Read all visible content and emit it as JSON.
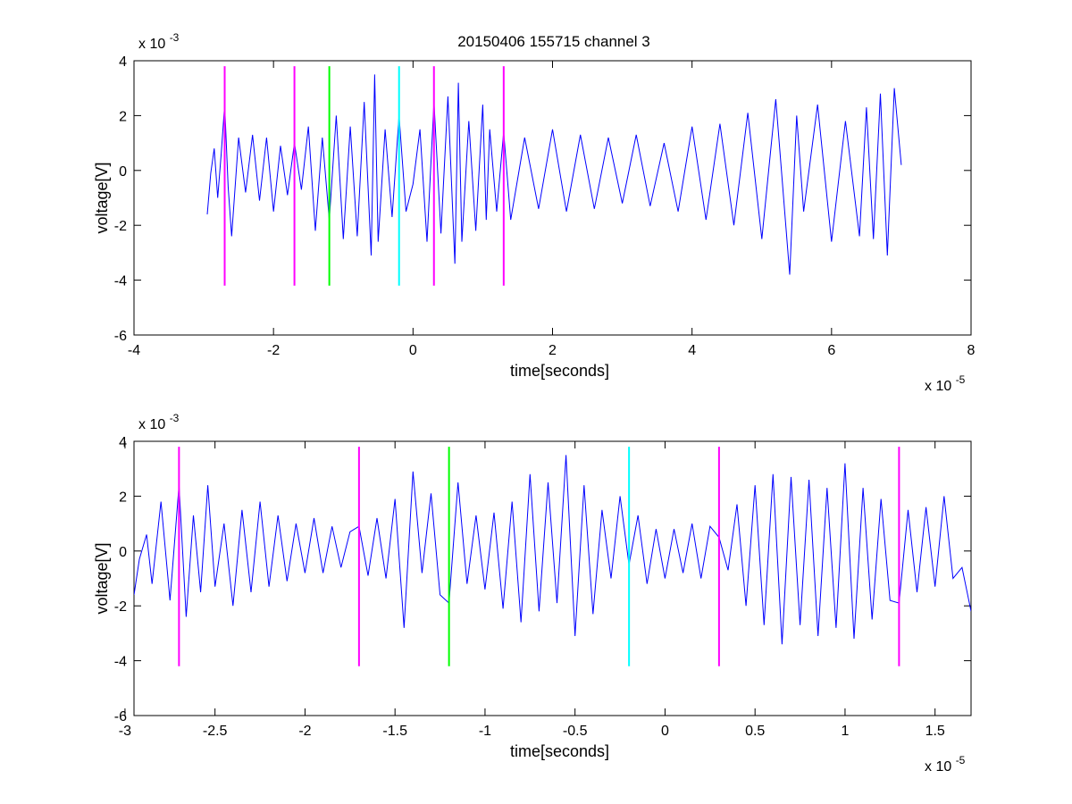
{
  "figure": {
    "title": "20150406 155715 channel 3"
  },
  "chart_data": [
    {
      "type": "line",
      "title": "20150406 155715 channel 3",
      "xlabel": "time[seconds]",
      "ylabel": "voltage[V]",
      "x_exponent_label": "x 10",
      "x_exponent": "-5",
      "y_exponent_label": "x 10",
      "y_exponent": "-3",
      "xlim": [
        -4,
        8
      ],
      "ylim": [
        -6,
        4
      ],
      "xticks": [
        -4,
        -2,
        0,
        2,
        4,
        6,
        8
      ],
      "xtick_labels": [
        "-4",
        "-2",
        "0",
        "2",
        "4",
        "6",
        "8"
      ],
      "yticks": [
        -6,
        -4,
        -2,
        0,
        2,
        4
      ],
      "ytick_labels": [
        "-6",
        "-4",
        "-2",
        "0",
        "2",
        "4"
      ],
      "grid": false,
      "series": [
        {
          "color": "#0000ff",
          "x": [
            -2.95,
            -2.9,
            -2.85,
            -2.8,
            -2.75,
            -2.7,
            -2.65,
            -2.6,
            -2.5,
            -2.4,
            -2.3,
            -2.2,
            -2.1,
            -2.0,
            -1.9,
            -1.8,
            -1.7,
            -1.6,
            -1.5,
            -1.4,
            -1.3,
            -1.2,
            -1.1,
            -1.0,
            -0.9,
            -0.8,
            -0.7,
            -0.6,
            -0.55,
            -0.5,
            -0.4,
            -0.3,
            -0.2,
            -0.1,
            0.0,
            0.1,
            0.2,
            0.3,
            0.4,
            0.5,
            0.6,
            0.65,
            0.7,
            0.8,
            0.9,
            1.0,
            1.05,
            1.1,
            1.2,
            1.3,
            1.4,
            1.6,
            1.8,
            2.0,
            2.2,
            2.4,
            2.6,
            2.8,
            3.0,
            3.2,
            3.4,
            3.6,
            3.8,
            4.0,
            4.2,
            4.4,
            4.6,
            4.8,
            5.0,
            5.2,
            5.4,
            5.5,
            5.6,
            5.8,
            6.0,
            6.2,
            6.4,
            6.5,
            6.6,
            6.7,
            6.8,
            6.9,
            7.0
          ],
          "y": [
            -1.6,
            -0.1,
            0.8,
            -1.0,
            0.6,
            2.4,
            -0.6,
            -2.4,
            1.2,
            -0.8,
            1.3,
            -1.1,
            1.2,
            -1.5,
            0.9,
            -0.9,
            1.0,
            -0.7,
            1.6,
            -2.2,
            1.2,
            -1.8,
            2.0,
            -2.5,
            1.6,
            -2.4,
            2.5,
            -3.1,
            3.5,
            -2.6,
            1.5,
            -1.7,
            2.0,
            -1.5,
            -0.5,
            1.5,
            -2.6,
            2.5,
            -2.3,
            2.7,
            -3.4,
            3.2,
            -2.6,
            1.8,
            -2.2,
            2.4,
            -1.8,
            1.5,
            -1.5,
            1.4,
            -1.8,
            1.2,
            -1.4,
            1.5,
            -1.5,
            1.3,
            -1.4,
            1.2,
            -1.2,
            1.3,
            -1.3,
            1.0,
            -1.5,
            1.6,
            -1.8,
            1.7,
            -2.0,
            2.1,
            -2.5,
            2.6,
            -3.8,
            2.0,
            -1.5,
            2.4,
            -2.6,
            1.8,
            -2.4,
            2.3,
            -2.5,
            2.8,
            -3.1,
            3.0,
            0.2
          ]
        }
      ],
      "annotations": {
        "vertical_lines": [
          {
            "x": -2.7,
            "color": "#ff00ff"
          },
          {
            "x": -1.7,
            "color": "#ff00ff"
          },
          {
            "x": -1.2,
            "color": "#00ff00"
          },
          {
            "x": -0.2,
            "color": "#00ffff"
          },
          {
            "x": 0.3,
            "color": "#ff00ff"
          },
          {
            "x": 1.3,
            "color": "#ff00ff"
          }
        ],
        "line_ylim": [
          -4.2,
          3.8
        ]
      }
    },
    {
      "type": "line",
      "title": "",
      "xlabel": "time[seconds]",
      "ylabel": "voltage[V]",
      "x_exponent_label": "x 10",
      "x_exponent": "-5",
      "y_exponent_label": "x 10",
      "y_exponent": "-3",
      "xlim": [
        -2.95,
        1.7
      ],
      "ylim": [
        -6,
        4
      ],
      "xticks": [
        -3,
        -2.5,
        -2,
        -1.5,
        -1,
        -0.5,
        0,
        0.5,
        1,
        1.5
      ],
      "xtick_labels": [
        "-3",
        "-2.5",
        "-2",
        "-1.5",
        "-1",
        "-0.5",
        "0",
        "0.5",
        "1",
        "1.5"
      ],
      "yticks": [
        -6,
        -4,
        -2,
        0,
        2,
        4
      ],
      "ytick_labels": [
        "-6",
        "-4",
        "-2",
        "0",
        "2",
        "4"
      ],
      "grid": false,
      "series": [
        {
          "color": "#0000ff",
          "x": [
            -2.95,
            -2.92,
            -2.88,
            -2.85,
            -2.8,
            -2.75,
            -2.7,
            -2.66,
            -2.62,
            -2.58,
            -2.54,
            -2.5,
            -2.45,
            -2.4,
            -2.35,
            -2.3,
            -2.25,
            -2.2,
            -2.15,
            -2.1,
            -2.05,
            -2.0,
            -1.95,
            -1.9,
            -1.85,
            -1.8,
            -1.75,
            -1.7,
            -1.65,
            -1.6,
            -1.55,
            -1.5,
            -1.45,
            -1.4,
            -1.35,
            -1.3,
            -1.25,
            -1.2,
            -1.15,
            -1.1,
            -1.05,
            -1.0,
            -0.95,
            -0.9,
            -0.85,
            -0.8,
            -0.75,
            -0.7,
            -0.65,
            -0.6,
            -0.55,
            -0.5,
            -0.45,
            -0.4,
            -0.35,
            -0.3,
            -0.25,
            -0.2,
            -0.15,
            -0.1,
            -0.05,
            0.0,
            0.05,
            0.1,
            0.15,
            0.2,
            0.25,
            0.3,
            0.35,
            0.4,
            0.45,
            0.5,
            0.55,
            0.6,
            0.65,
            0.7,
            0.75,
            0.8,
            0.85,
            0.9,
            0.95,
            1.0,
            1.05,
            1.1,
            1.15,
            1.2,
            1.25,
            1.3,
            1.35,
            1.4,
            1.45,
            1.5,
            1.55,
            1.6,
            1.65,
            1.7
          ],
          "y": [
            -1.6,
            -0.3,
            0.6,
            -1.2,
            1.8,
            -1.8,
            2.4,
            -2.4,
            1.3,
            -1.5,
            2.4,
            -1.3,
            1.0,
            -2.0,
            1.5,
            -1.5,
            1.8,
            -1.3,
            1.3,
            -1.1,
            1.0,
            -0.8,
            1.2,
            -0.8,
            0.9,
            -0.6,
            0.7,
            0.9,
            -0.9,
            1.2,
            -1.0,
            1.9,
            -2.8,
            2.9,
            -0.8,
            2.1,
            -1.6,
            -1.9,
            2.5,
            -1.2,
            1.3,
            -1.4,
            1.4,
            -2.1,
            1.8,
            -2.6,
            2.8,
            -2.2,
            2.5,
            -1.9,
            3.5,
            -3.1,
            2.4,
            -2.3,
            1.5,
            -1.0,
            2.0,
            -0.5,
            1.3,
            -1.2,
            0.8,
            -1.0,
            0.8,
            -0.8,
            1.0,
            -1.0,
            0.9,
            0.5,
            -0.7,
            1.7,
            -2.0,
            2.4,
            -2.7,
            2.8,
            -3.4,
            2.7,
            -2.7,
            2.6,
            -3.1,
            2.3,
            -2.8,
            3.2,
            -3.2,
            2.3,
            -2.5,
            1.9,
            -1.8,
            -1.9,
            1.5,
            -1.5,
            1.6,
            -1.3,
            2.0,
            -1.0,
            -0.6,
            -2.2
          ]
        }
      ],
      "annotations": {
        "vertical_lines": [
          {
            "x": -2.7,
            "color": "#ff00ff"
          },
          {
            "x": -1.7,
            "color": "#ff00ff"
          },
          {
            "x": -1.2,
            "color": "#00ff00"
          },
          {
            "x": -0.2,
            "color": "#00ffff"
          },
          {
            "x": 0.3,
            "color": "#ff00ff"
          },
          {
            "x": 1.3,
            "color": "#ff00ff"
          }
        ],
        "line_ylim": [
          -4.2,
          3.8
        ]
      }
    }
  ]
}
